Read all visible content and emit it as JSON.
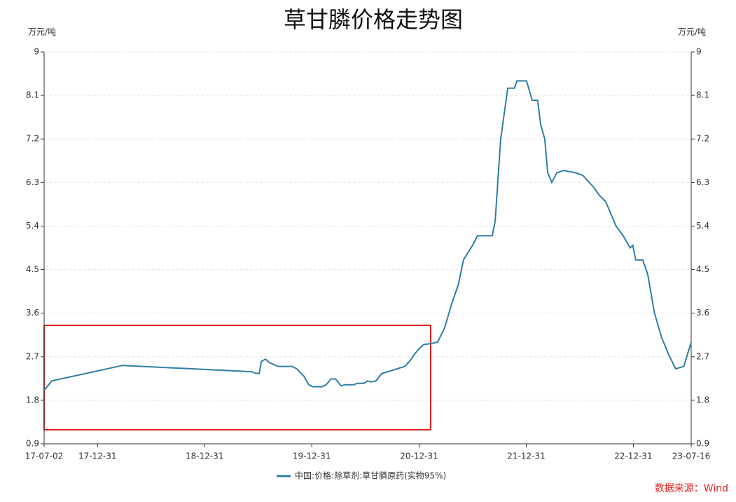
{
  "chart_data": {
    "type": "line",
    "title": "草甘膦价格走势图",
    "y_label": "万元/吨",
    "y2_label": "万元/吨",
    "x": [
      "17-07-02",
      "17-07-28",
      "18-03-26",
      "19-06-11",
      "19-06-20",
      "19-07-05",
      "19-07-12",
      "19-07-26",
      "19-08-09",
      "19-09-07",
      "19-10-25",
      "19-11-10",
      "19-11-25",
      "19-12-04",
      "19-12-21",
      "20-01-04",
      "20-02-04",
      "20-02-18",
      "20-03-06",
      "20-03-21",
      "20-04-09",
      "20-04-23",
      "20-05-22",
      "20-06-03",
      "20-06-26",
      "20-07-08",
      "20-07-20",
      "20-08-06",
      "20-08-25",
      "20-11-12",
      "20-11-28",
      "20-12-15",
      "20-12-29",
      "21-01-15",
      "21-02-08",
      "21-03-04",
      "21-03-28",
      "21-04-21",
      "21-05-14",
      "21-05-31",
      "21-06-15",
      "21-07-01",
      "21-07-18",
      "21-09-06",
      "21-09-16",
      "21-10-05",
      "21-10-29",
      "21-11-21",
      "21-11-29",
      "22-01-01",
      "22-01-20",
      "22-02-08",
      "22-02-18",
      "22-03-04",
      "22-03-14",
      "22-03-28",
      "22-04-14",
      "22-05-07",
      "22-06-17",
      "22-07-11",
      "22-08-18",
      "22-09-04",
      "22-09-28",
      "22-11-02",
      "22-11-26",
      "22-12-20",
      "22-12-29",
      "23-01-08",
      "23-02-01",
      "23-02-18",
      "23-03-13",
      "23-04-06",
      "23-04-30",
      "23-05-24",
      "23-06-21",
      "23-07-16"
    ],
    "series": [
      {
        "name": "中国:价格:除草剂:草甘膦原药(实物95%)",
        "color": "#2e7ea6",
        "values": [
          2.0,
          2.2,
          2.52,
          2.39,
          2.36,
          2.35,
          2.6,
          2.65,
          2.58,
          2.5,
          2.5,
          2.45,
          2.35,
          2.3,
          2.12,
          2.08,
          2.08,
          2.12,
          2.24,
          2.24,
          2.1,
          2.12,
          2.12,
          2.15,
          2.15,
          2.2,
          2.18,
          2.2,
          2.35,
          2.5,
          2.6,
          2.75,
          2.85,
          2.95,
          2.97,
          3.0,
          3.3,
          3.8,
          4.2,
          4.7,
          4.85,
          5.0,
          5.2,
          5.2,
          5.5,
          7.2,
          8.25,
          8.25,
          8.4,
          8.4,
          8.0,
          8.0,
          7.5,
          7.2,
          6.5,
          6.3,
          6.5,
          6.55,
          6.5,
          6.45,
          6.2,
          6.05,
          5.9,
          5.4,
          5.2,
          4.95,
          5.0,
          4.7,
          4.7,
          4.4,
          3.6,
          3.1,
          2.75,
          2.45,
          2.5,
          3.0
        ]
      }
    ],
    "xlim": [
      "17-07-02",
      "23-07-16"
    ],
    "xticks": [
      "17-07-02",
      "17-12-31",
      "18-12-31",
      "19-12-31",
      "20-12-31",
      "21-12-31",
      "22-12-31",
      "23-07-16"
    ],
    "ylim": [
      0.9,
      9
    ],
    "yticks": [
      0.9,
      1.8,
      2.7,
      3.6,
      4.5,
      5.4,
      6.3,
      7.2,
      8.1,
      9
    ],
    "y2lim": [
      0.9,
      9
    ],
    "y2ticks": [
      0.9,
      1.8,
      2.7,
      3.6,
      4.5,
      5.4,
      6.3,
      7.2,
      8.1,
      9
    ],
    "grid": true,
    "source": "数据来源：Wind",
    "source_color": "#e8211c"
  }
}
